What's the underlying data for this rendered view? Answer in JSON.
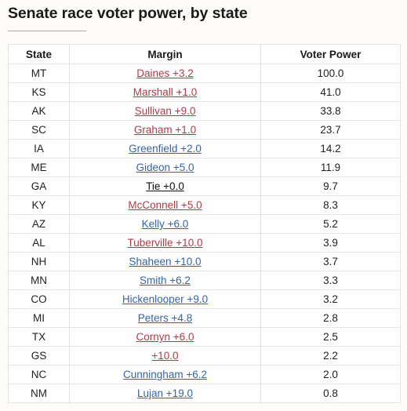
{
  "title": "Senate race voter power, by state",
  "columns": {
    "state": "State",
    "margin": "Margin",
    "power": "Voter Power"
  },
  "party_colors": {
    "R": "#b03a48",
    "D": "#3464a8",
    "N": "#111111"
  },
  "rows": [
    {
      "state": "MT",
      "margin": "Daines +3.2",
      "party": "R",
      "power": "100.0"
    },
    {
      "state": "KS",
      "margin": "Marshall +1.0",
      "party": "R",
      "power": "41.0"
    },
    {
      "state": "AK",
      "margin": "Sullivan +9.0",
      "party": "R",
      "power": "33.8"
    },
    {
      "state": "SC",
      "margin": "Graham +1.0",
      "party": "R",
      "power": "23.7"
    },
    {
      "state": "IA",
      "margin": "Greenfield +2.0",
      "party": "D",
      "power": "14.2"
    },
    {
      "state": "ME",
      "margin": "Gideon +5.0",
      "party": "D",
      "power": "11.9"
    },
    {
      "state": "GA",
      "margin": "Tie +0.0",
      "party": "N",
      "power": "9.7"
    },
    {
      "state": "KY",
      "margin": "McConnell +5.0",
      "party": "R",
      "power": "8.3"
    },
    {
      "state": "AZ",
      "margin": "Kelly +6.0",
      "party": "D",
      "power": "5.2"
    },
    {
      "state": "AL",
      "margin": "Tuberville +10.0",
      "party": "R",
      "power": "3.9"
    },
    {
      "state": "NH",
      "margin": "Shaheen +10.0",
      "party": "D",
      "power": "3.7"
    },
    {
      "state": "MN",
      "margin": "Smith +6.2",
      "party": "D",
      "power": "3.3"
    },
    {
      "state": "CO",
      "margin": "Hickenlooper +9.0",
      "party": "D",
      "power": "3.2"
    },
    {
      "state": "MI",
      "margin": "Peters +4.8",
      "party": "D",
      "power": "2.8"
    },
    {
      "state": "TX",
      "margin": "Cornyn +6.0",
      "party": "R",
      "power": "2.5"
    },
    {
      "state": "GS",
      "margin": "+10.0",
      "party": "R",
      "power": "2.2"
    },
    {
      "state": "NC",
      "margin": "Cunningham +6.2",
      "party": "D",
      "power": "2.0"
    },
    {
      "state": "NM",
      "margin": "Lujan +19.0",
      "party": "D",
      "power": "0.8"
    }
  ]
}
